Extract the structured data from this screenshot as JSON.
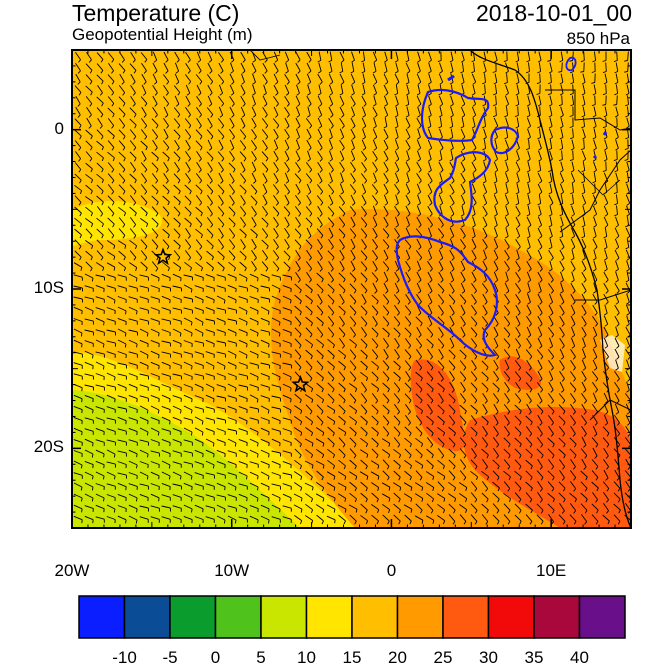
{
  "header": {
    "title": "Temperature (C)",
    "subtitle": "Geopotential Height (m)",
    "datetime": "2018-10-01_00",
    "level": "850 hPa"
  },
  "axes": {
    "lat_labels": [
      {
        "text": "0",
        "lat": 0
      },
      {
        "text": "10S",
        "lat": -10
      },
      {
        "text": "20S",
        "lat": -20
      }
    ],
    "lon_labels": [
      {
        "text": "20W",
        "lon": -20
      },
      {
        "text": "10W",
        "lon": -10
      },
      {
        "text": "0",
        "lon": 0
      },
      {
        "text": "10E",
        "lon": 10
      }
    ],
    "lon_range": [
      -20,
      15
    ],
    "lat_range": [
      -25,
      5
    ]
  },
  "markers": [
    {
      "name": "star-marker",
      "lon": -14.3,
      "lat": -8.0
    },
    {
      "name": "star-marker",
      "lon": -5.7,
      "lat": -16.0
    }
  ],
  "colorbar": {
    "colors": [
      "#0a1eff",
      "#0a4c96",
      "#0b9c2e",
      "#4fc31c",
      "#c8e600",
      "#ffe500",
      "#ffbf00",
      "#ff9a00",
      "#ff5a10",
      "#f20a0a",
      "#a8083c",
      "#6a0f8a"
    ],
    "labels": [
      "-10",
      "-5",
      "0",
      "5",
      "10",
      "15",
      "20",
      "25",
      "30",
      "35",
      "40"
    ]
  },
  "field_colors": {
    "t15_20": "#ffbf00",
    "t10_15": "#ffe500",
    "t5_10": "#c8e600",
    "t20_25": "#ff9a00",
    "t25_30": "#ff5a10",
    "height_contour": "#1a1aff",
    "coast": "#000000"
  }
}
